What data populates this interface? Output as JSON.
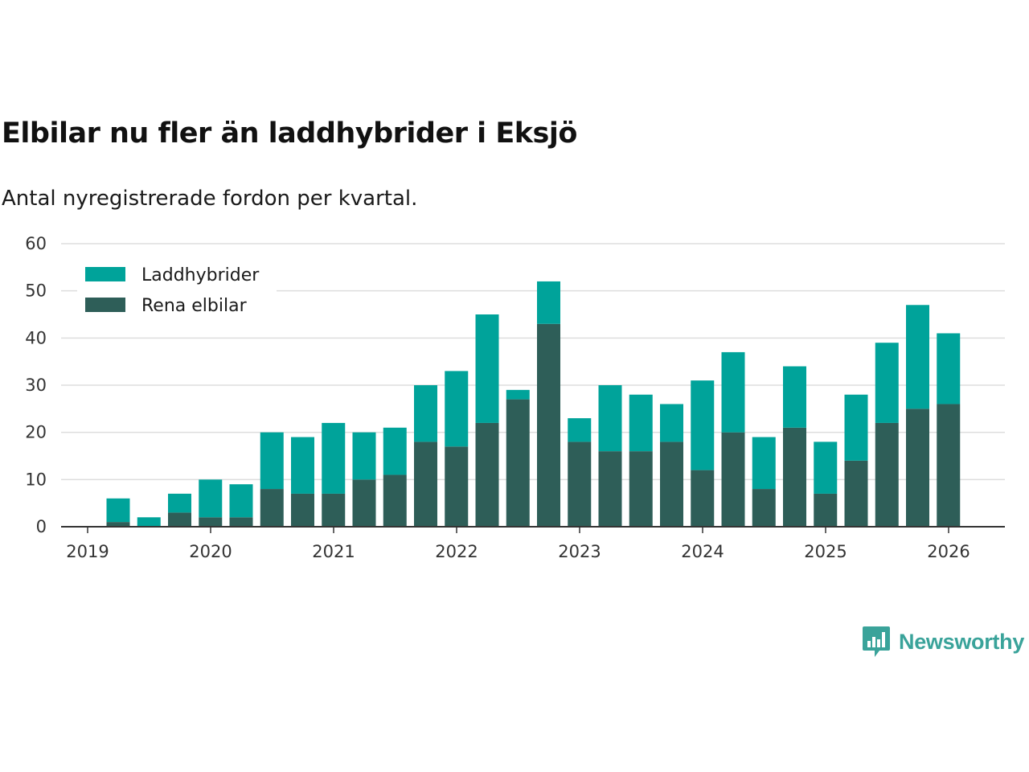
{
  "title": "Elbilar nu fler än laddhybrider i Eksjö",
  "subtitle": "Antal nyregistrerade fordon per kvartal.",
  "brand": "Newsworthy",
  "colors": {
    "laddhybrider": "#00a39a",
    "elbilar": "#2e5e58",
    "grid": "#dddddd",
    "axis": "#333333"
  },
  "chart_data": {
    "type": "bar",
    "stacked": true,
    "title": "Elbilar nu fler än laddhybrider i Eksjö",
    "subtitle": "Antal nyregistrerade fordon per kvartal.",
    "xlabel": "",
    "ylabel": "",
    "ylim": [
      0,
      60
    ],
    "yticks": [
      0,
      10,
      20,
      30,
      40,
      50,
      60
    ],
    "xticks": [
      "2019",
      "2020",
      "2021",
      "2022",
      "2023",
      "2024",
      "2025",
      "2026"
    ],
    "legend_position": "top-left",
    "categories": [
      "2019 Q2",
      "2019 Q3",
      "2019 Q4",
      "2020 Q1",
      "2020 Q2",
      "2020 Q3",
      "2020 Q4",
      "2021 Q1",
      "2021 Q2",
      "2021 Q3",
      "2021 Q4",
      "2022 Q1",
      "2022 Q2",
      "2022 Q3",
      "2022 Q4",
      "2023 Q1",
      "2023 Q2",
      "2023 Q3",
      "2023 Q4",
      "2024 Q1",
      "2024 Q2",
      "2024 Q3",
      "2024 Q4",
      "2025 Q1",
      "2025 Q2",
      "2025 Q3",
      "2025 Q4",
      "2026 Q1"
    ],
    "series": [
      {
        "name": "Rena elbilar",
        "color": "#2e5e58",
        "values": [
          1,
          0,
          3,
          2,
          2,
          8,
          7,
          7,
          10,
          11,
          18,
          17,
          22,
          27,
          43,
          18,
          16,
          16,
          18,
          12,
          20,
          8,
          21,
          7,
          14,
          22,
          25,
          26
        ]
      },
      {
        "name": "Laddhybrider",
        "color": "#00a39a",
        "values": [
          5,
          2,
          4,
          8,
          7,
          12,
          12,
          15,
          10,
          10,
          12,
          16,
          23,
          2,
          9,
          5,
          14,
          12,
          8,
          19,
          17,
          11,
          13,
          11,
          14,
          17,
          22,
          15
        ]
      }
    ],
    "legend": [
      "Laddhybrider",
      "Rena elbilar"
    ]
  }
}
